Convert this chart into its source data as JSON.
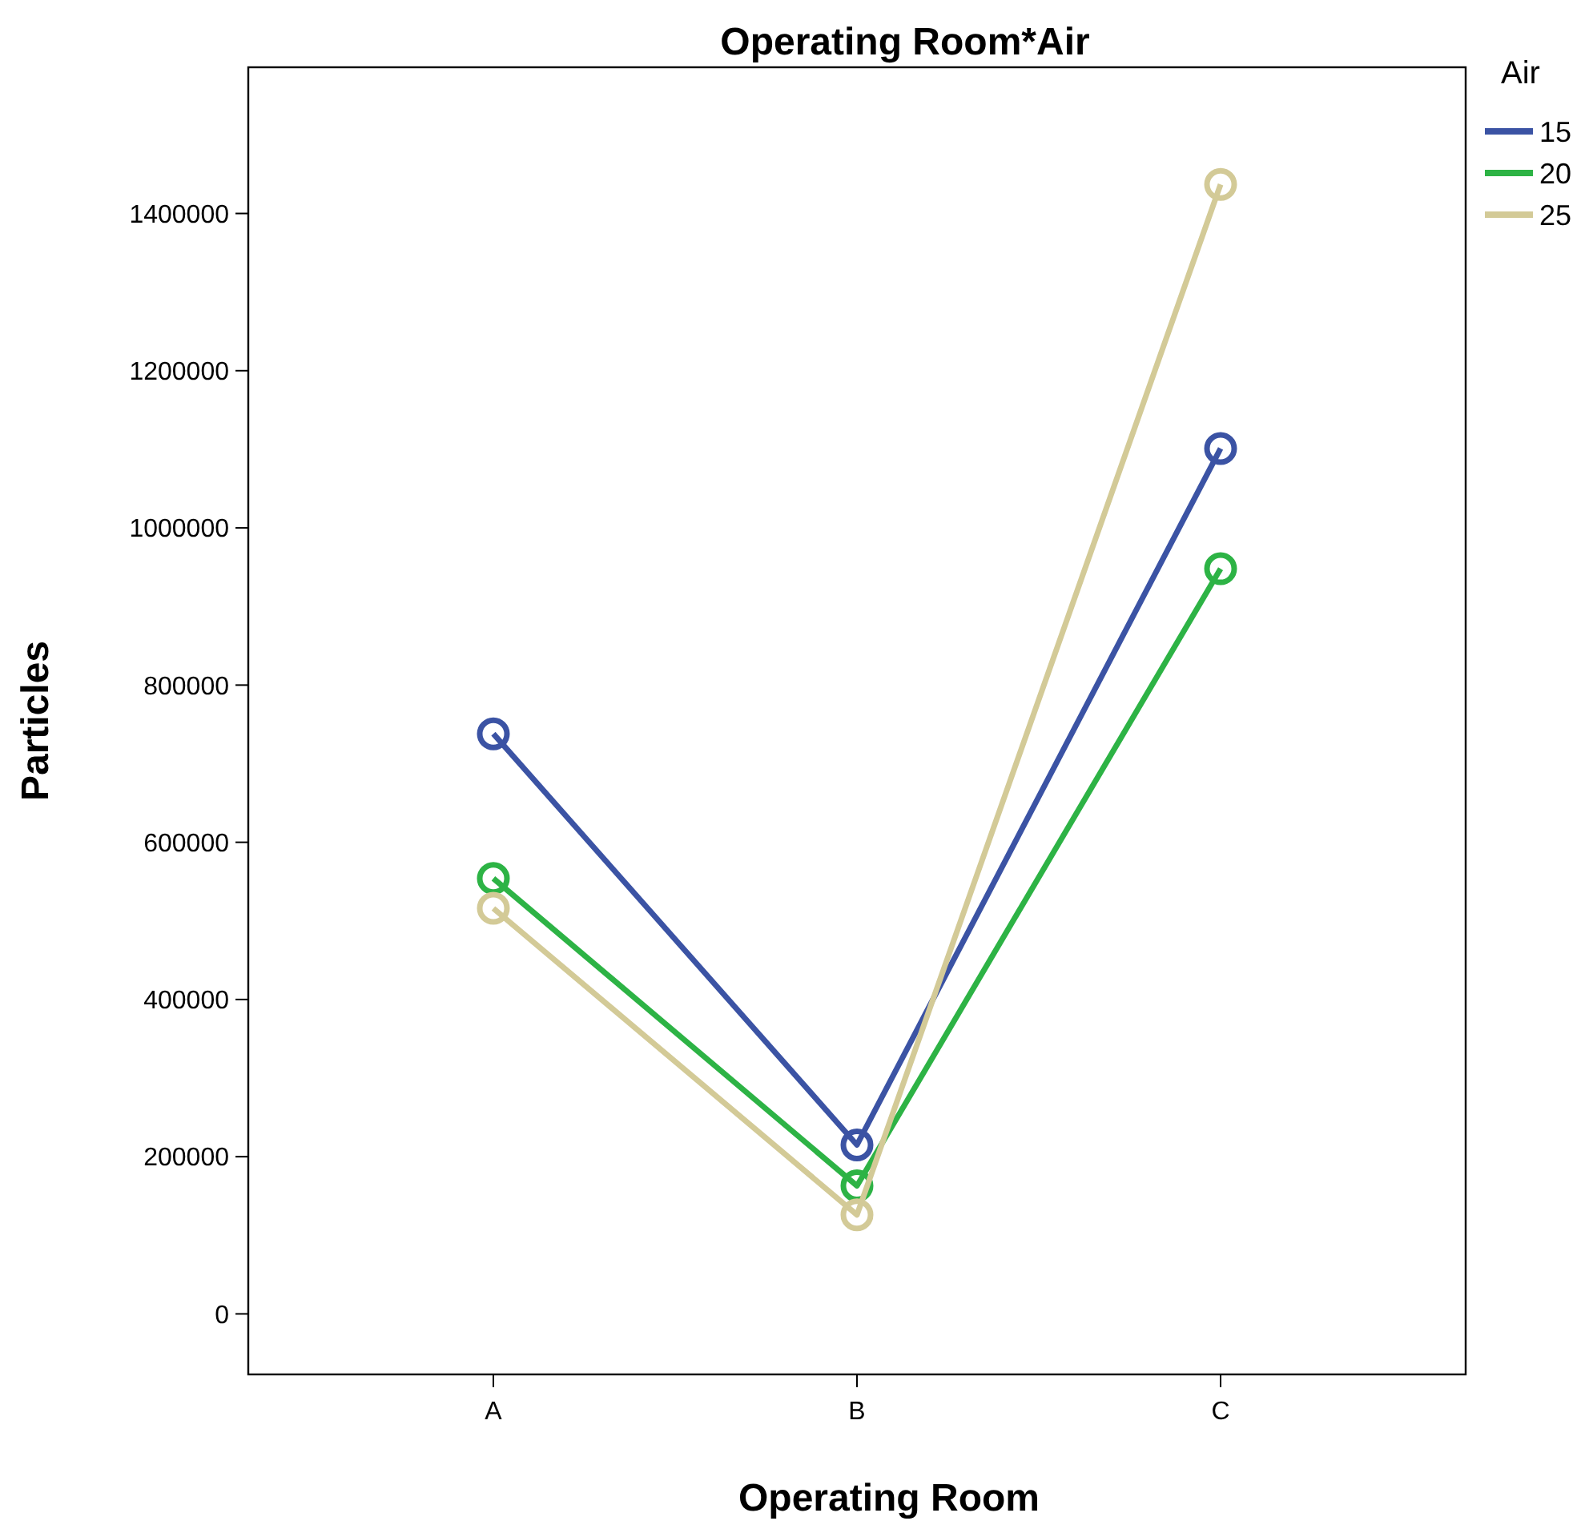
{
  "chart_data": {
    "type": "line",
    "title": "Operating Room*Air",
    "xlabel": "Operating Room",
    "ylabel": "Particles",
    "legend_title": "Air",
    "categories": [
      "A",
      "B",
      "C"
    ],
    "series": [
      {
        "name": "15",
        "color": "#3b53a4",
        "values": [
          738000,
          215000,
          1101000
        ]
      },
      {
        "name": "20",
        "color": "#2db345",
        "values": [
          554000,
          163000,
          948000
        ]
      },
      {
        "name": "25",
        "color": "#d3ca97",
        "values": [
          516000,
          126000,
          1437000
        ]
      }
    ],
    "ylim": [
      -77000,
      1586000
    ],
    "yticks": [
      0,
      200000,
      400000,
      600000,
      800000,
      1000000,
      1200000,
      1400000
    ],
    "grid": false,
    "legend": "top right",
    "marker": "circle",
    "line_style": "solid"
  }
}
